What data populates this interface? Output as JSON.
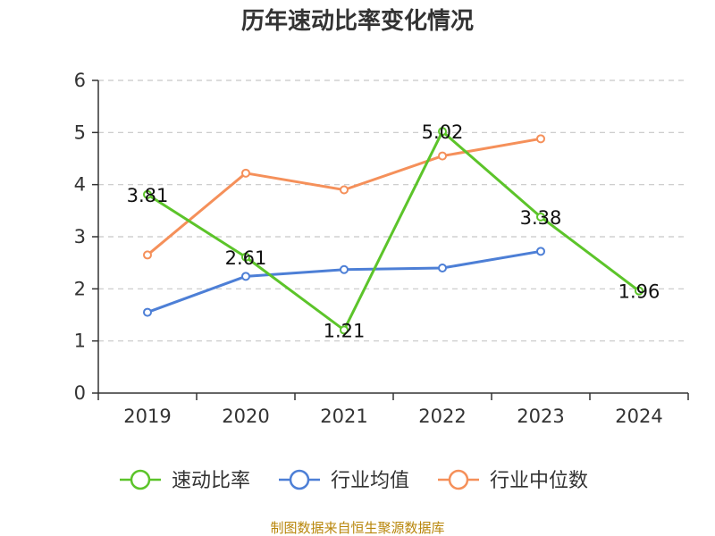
{
  "chart_data": {
    "type": "line",
    "title": "历年速动比率变化情况",
    "categories": [
      "2019",
      "2020",
      "2021",
      "2022",
      "2023",
      "2024"
    ],
    "ylim": [
      0,
      6
    ],
    "yticks": [
      "0",
      "1",
      "2",
      "3",
      "4",
      "5",
      "6"
    ],
    "grid": true,
    "legend_position": "bottom",
    "series": [
      {
        "name": "速动比率",
        "color": "#5cc42a",
        "values": [
          3.81,
          2.61,
          1.21,
          5.02,
          3.38,
          1.96
        ],
        "labels": [
          "3.81",
          "2.61",
          "1.21",
          "5.02",
          "3.38",
          "1.96"
        ]
      },
      {
        "name": "行业均值",
        "color": "#4d7fd6",
        "values": [
          1.55,
          2.24,
          2.37,
          2.4,
          2.72,
          null
        ]
      },
      {
        "name": "行业中位数",
        "color": "#f5905a",
        "values": [
          2.65,
          4.22,
          3.9,
          4.55,
          4.88,
          null
        ]
      }
    ]
  },
  "source": "制图数据来自恒生聚源数据库"
}
